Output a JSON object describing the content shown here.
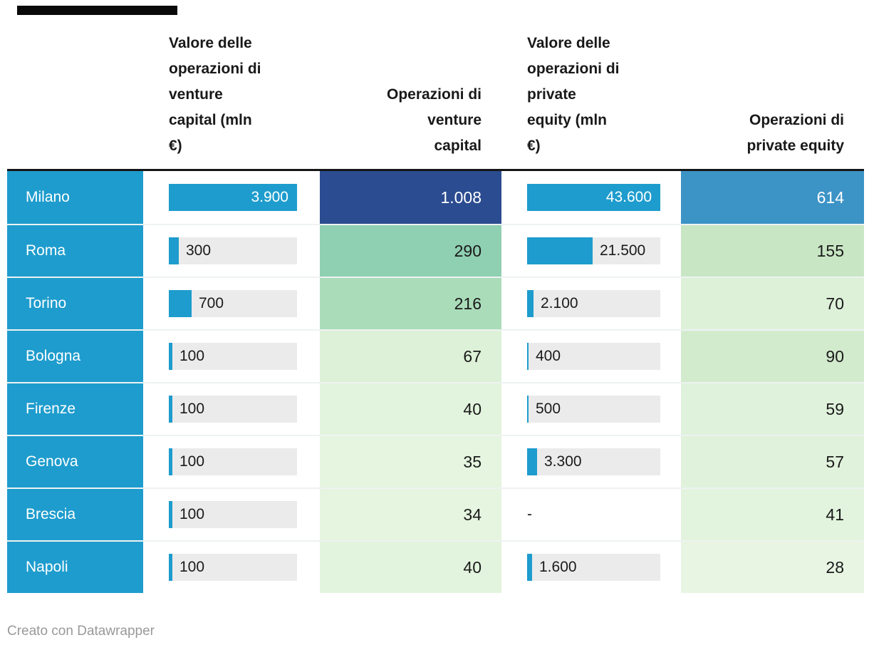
{
  "table": {
    "columns": [
      {
        "id": "city",
        "label": "",
        "align": "left"
      },
      {
        "id": "vc_value",
        "label": "Valore delle\noperazioni di\nventure\ncapital (mln\n€)",
        "align": "left"
      },
      {
        "id": "vc_ops",
        "label": "Operazioni di\nventure\ncapital",
        "align": "right"
      },
      {
        "id": "pe_value",
        "label": "Valore delle\noperazioni di\nprivate\nequity (mln\n€)",
        "align": "left"
      },
      {
        "id": "pe_ops",
        "label": "Operazioni di\nprivate equity",
        "align": "right"
      }
    ],
    "rows": [
      {
        "city": "Milano",
        "vc_value": "3.900",
        "vc_ops": "1.008",
        "pe_value": "43.600",
        "pe_ops": "614"
      },
      {
        "city": "Roma",
        "vc_value": "300",
        "vc_ops": "290",
        "pe_value": "21.500",
        "pe_ops": "155"
      },
      {
        "city": "Torino",
        "vc_value": "700",
        "vc_ops": "216",
        "pe_value": "2.100",
        "pe_ops": "70"
      },
      {
        "city": "Bologna",
        "vc_value": "100",
        "vc_ops": "67",
        "pe_value": "400",
        "pe_ops": "90"
      },
      {
        "city": "Firenze",
        "vc_value": "100",
        "vc_ops": "40",
        "pe_value": "500",
        "pe_ops": "59"
      },
      {
        "city": "Genova",
        "vc_value": "100",
        "vc_ops": "35",
        "pe_value": "3.300",
        "pe_ops": "57"
      },
      {
        "city": "Brescia",
        "vc_value": "100",
        "vc_ops": "34",
        "pe_value": "-",
        "pe_ops": "41"
      },
      {
        "city": "Napoli",
        "vc_value": "100",
        "vc_ops": "40",
        "pe_value": "1.600",
        "pe_ops": "28"
      }
    ]
  },
  "chart_data": {
    "type": "table",
    "title": "",
    "columns": [
      "",
      "Valore delle operazioni di venture capital (mln €)",
      "Operazioni di venture capital",
      "Valore delle operazioni di private equity (mln €)",
      "Operazioni di private equity"
    ],
    "rows": [
      {
        "city": "Milano",
        "vc_value_mln_eur": 3900,
        "vc_operations": 1008,
        "pe_value_mln_eur": 43600,
        "pe_operations": 614
      },
      {
        "city": "Roma",
        "vc_value_mln_eur": 300,
        "vc_operations": 290,
        "pe_value_mln_eur": 21500,
        "pe_operations": 155
      },
      {
        "city": "Torino",
        "vc_value_mln_eur": 700,
        "vc_operations": 216,
        "pe_value_mln_eur": 2100,
        "pe_operations": 70
      },
      {
        "city": "Bologna",
        "vc_value_mln_eur": 100,
        "vc_operations": 67,
        "pe_value_mln_eur": 400,
        "pe_operations": 90
      },
      {
        "city": "Firenze",
        "vc_value_mln_eur": 100,
        "vc_operations": 40,
        "pe_value_mln_eur": 500,
        "pe_operations": 59
      },
      {
        "city": "Genova",
        "vc_value_mln_eur": 100,
        "vc_operations": 35,
        "pe_value_mln_eur": 3300,
        "pe_operations": 57
      },
      {
        "city": "Brescia",
        "vc_value_mln_eur": 100,
        "vc_operations": 34,
        "pe_value_mln_eur": null,
        "pe_operations": 41
      },
      {
        "city": "Napoli",
        "vc_value_mln_eur": 100,
        "vc_operations": 40,
        "pe_value_mln_eur": 1600,
        "pe_operations": 28
      }
    ],
    "bar_max": {
      "vc_value_mln_eur": 3900,
      "pe_value_mln_eur": 43600
    },
    "bar_columns": [
      "vc_value_mln_eur",
      "pe_value_mln_eur"
    ],
    "heatmap_columns": [
      "vc_operations",
      "pe_operations"
    ]
  },
  "styles": {
    "city_bg": "#1E9CCD",
    "bar_fill": "#1E9CCD",
    "bar_track": "#EBEBEB",
    "header_border": "#161616",
    "vc_ops_cells": [
      {
        "bg": "#2B4C90",
        "fg": "#ffffff"
      },
      {
        "bg": "#8FCFB2",
        "fg": "#1a1a1a"
      },
      {
        "bg": "#AADCBA",
        "fg": "#1a1a1a"
      },
      {
        "bg": "#DCF1D7",
        "fg": "#1a1a1a"
      },
      {
        "bg": "#E3F4DE",
        "fg": "#1a1a1a"
      },
      {
        "bg": "#E5F5E0",
        "fg": "#1a1a1a"
      },
      {
        "bg": "#E5F5E0",
        "fg": "#1a1a1a"
      },
      {
        "bg": "#E3F4DE",
        "fg": "#1a1a1a"
      }
    ],
    "pe_ops_cells": [
      {
        "bg": "#3C93C6",
        "fg": "#ffffff"
      },
      {
        "bg": "#C8E6C4",
        "fg": "#1a1a1a"
      },
      {
        "bg": "#DDF1D9",
        "fg": "#1a1a1a"
      },
      {
        "bg": "#D2EBCD",
        "fg": "#1a1a1a"
      },
      {
        "bg": "#DFF2DB",
        "fg": "#1a1a1a"
      },
      {
        "bg": "#E0F2DB",
        "fg": "#1a1a1a"
      },
      {
        "bg": "#E3F4DE",
        "fg": "#1a1a1a"
      },
      {
        "bg": "#E7F5E2",
        "fg": "#1a1a1a"
      }
    ]
  },
  "footer": {
    "text": "Creato con Datawrapper",
    "color": "#999999"
  }
}
